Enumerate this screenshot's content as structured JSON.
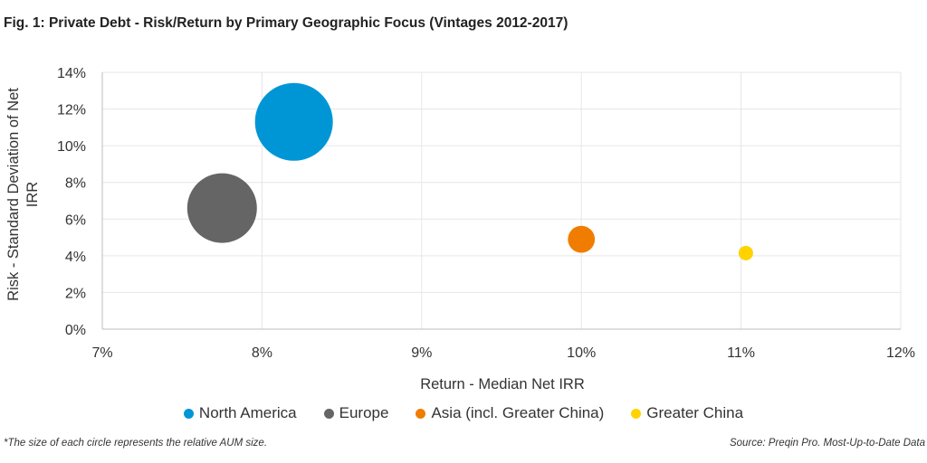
{
  "title": "Fig. 1: Private Debt - Risk/Return by Primary Geographic Focus (Vintages 2012-2017)",
  "footnote": "*The size of each circle represents the relative AUM size.",
  "source": "Source: Preqin Pro. Most-Up-to-Date Data",
  "chart_data": {
    "type": "scatter",
    "subtype": "bubble",
    "title": "Fig. 1: Private Debt - Risk/Return by Primary Geographic Focus (Vintages 2012-2017)",
    "xlabel": "Return - Median Net IRR",
    "ylabel": "Risk - Standard Deviation of Net IRR",
    "xlim": [
      7,
      12
    ],
    "ylim": [
      0,
      14
    ],
    "x_ticks": [
      "7%",
      "8%",
      "9%",
      "10%",
      "11%",
      "12%"
    ],
    "y_ticks": [
      "0%",
      "2%",
      "4%",
      "6%",
      "8%",
      "10%",
      "12%",
      "14%"
    ],
    "grid": true,
    "legend_position": "bottom",
    "series": [
      {
        "name": "North America",
        "color": "#0096d6",
        "x": 8.2,
        "y": 11.3,
        "relative_size": 1.0
      },
      {
        "name": "Europe",
        "color": "#656565",
        "x": 7.75,
        "y": 6.6,
        "relative_size": 0.8
      },
      {
        "name": "Asia (incl. Greater China)",
        "color": "#f07d00",
        "x": 10.0,
        "y": 4.9,
        "relative_size": 0.12
      },
      {
        "name": "Greater China",
        "color": "#ffd200",
        "x": 11.03,
        "y": 4.15,
        "relative_size": 0.035
      }
    ]
  }
}
